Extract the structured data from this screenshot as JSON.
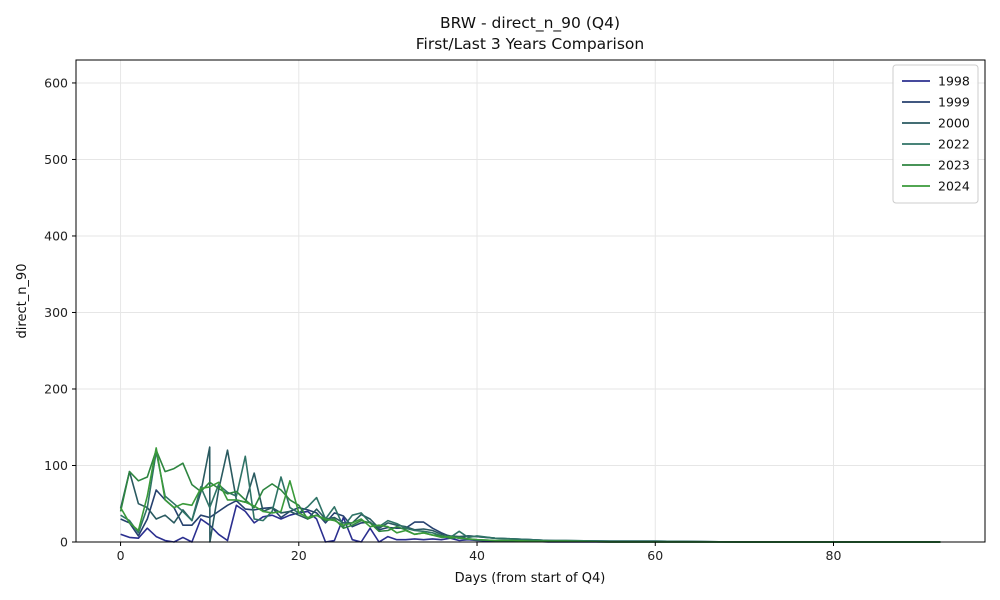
{
  "chart_data": {
    "type": "line",
    "title": "BRW - direct_n_90 (Q4)",
    "subtitle": "First/Last 3 Years Comparison",
    "xlabel": "Days (from start of Q4)",
    "ylabel": "direct_n_90",
    "xlim": [
      -5,
      97
    ],
    "ylim": [
      0,
      630
    ],
    "xticks": [
      0,
      20,
      40,
      60,
      80
    ],
    "yticks": [
      0,
      100,
      200,
      300,
      400,
      500,
      600
    ],
    "grid": true,
    "legend_position": "top-right",
    "series": [
      {
        "name": "1998",
        "color": "#2b2f8f",
        "x": [
          0,
          1,
          2,
          3,
          4,
          5,
          6,
          7,
          8,
          9,
          10,
          11,
          12,
          13,
          14,
          15,
          16,
          17,
          18,
          19,
          20,
          21,
          22,
          23,
          24,
          25,
          26,
          27,
          28,
          29,
          30,
          31,
          32,
          33,
          34,
          35,
          36,
          37,
          38,
          39,
          40,
          42,
          44,
          46,
          48,
          50,
          55,
          60,
          70,
          80,
          92
        ],
        "y": [
          10,
          6,
          5,
          18,
          7,
          2,
          0,
          6,
          0,
          30,
          22,
          10,
          2,
          48,
          40,
          25,
          33,
          35,
          30,
          35,
          38,
          40,
          30,
          0,
          2,
          32,
          3,
          0,
          18,
          0,
          7,
          3,
          3,
          4,
          3,
          4,
          3,
          5,
          2,
          3,
          2,
          1,
          1,
          1,
          0,
          0,
          0,
          0,
          0,
          0,
          0
        ]
      },
      {
        "name": "1999",
        "color": "#26416e",
        "x": [
          0,
          1,
          2,
          3,
          4,
          5,
          6,
          7,
          8,
          9,
          10,
          11,
          12,
          13,
          14,
          15,
          16,
          17,
          18,
          19,
          20,
          21,
          22,
          23,
          24,
          25,
          26,
          27,
          28,
          29,
          30,
          31,
          32,
          33,
          34,
          35,
          36,
          37,
          38,
          39,
          40,
          42,
          44,
          46,
          48,
          50,
          55,
          60,
          70,
          80,
          92
        ],
        "y": [
          30,
          25,
          8,
          30,
          68,
          55,
          45,
          22,
          22,
          35,
          32,
          40,
          48,
          54,
          43,
          42,
          44,
          45,
          32,
          40,
          45,
          42,
          38,
          25,
          38,
          34,
          20,
          25,
          26,
          16,
          19,
          18,
          18,
          26,
          26,
          18,
          12,
          7,
          5,
          8,
          7,
          5,
          4,
          3,
          2,
          1,
          1,
          1,
          0,
          0,
          0
        ]
      },
      {
        "name": "2000",
        "color": "#2a5a60",
        "x": [
          0,
          1,
          2,
          3,
          4,
          5,
          6,
          7,
          8,
          9,
          10,
          10.02,
          11,
          12,
          13,
          14,
          15,
          16,
          17,
          18,
          19,
          20,
          21,
          22,
          23,
          24,
          25,
          26,
          27,
          28,
          29,
          30,
          31,
          32,
          33,
          34,
          35,
          36,
          37,
          38,
          39,
          40,
          42,
          44,
          46,
          48,
          50,
          55,
          60,
          70,
          80,
          92
        ],
        "y": [
          44,
          92,
          50,
          45,
          30,
          35,
          25,
          42,
          28,
          65,
          124,
          0,
          68,
          120,
          55,
          52,
          90,
          40,
          45,
          38,
          40,
          35,
          30,
          43,
          30,
          32,
          25,
          25,
          36,
          30,
          18,
          25,
          22,
          20,
          16,
          17,
          15,
          10,
          8,
          7,
          8,
          7,
          5,
          4,
          3,
          2,
          2,
          1,
          1,
          0,
          0,
          0
        ]
      },
      {
        "name": "2022",
        "color": "#2f7366",
        "x": [
          0,
          1,
          2,
          3,
          4,
          5,
          6,
          7,
          8,
          9,
          10,
          11,
          12,
          13,
          14,
          15,
          16,
          17,
          18,
          19,
          20,
          21,
          22,
          23,
          24,
          25,
          26,
          27,
          28,
          29,
          30,
          31,
          32,
          33,
          34,
          35,
          36,
          37,
          38,
          39,
          40,
          42,
          44,
          46,
          48,
          50,
          55,
          60,
          70,
          80,
          92
        ],
        "y": [
          35,
          28,
          12,
          45,
          118,
          60,
          50,
          40,
          28,
          72,
          45,
          75,
          65,
          60,
          112,
          30,
          28,
          40,
          85,
          45,
          38,
          46,
          58,
          30,
          46,
          20,
          35,
          38,
          25,
          20,
          28,
          24,
          18,
          15,
          14,
          12,
          8,
          6,
          14,
          6,
          8,
          5,
          4,
          3,
          2,
          2,
          1,
          1,
          0,
          0,
          0
        ]
      },
      {
        "name": "2023",
        "color": "#2e8540",
        "x": [
          0,
          1,
          2,
          3,
          4,
          5,
          6,
          7,
          8,
          9,
          10,
          11,
          12,
          13,
          14,
          15,
          16,
          17,
          18,
          19,
          20,
          21,
          22,
          23,
          24,
          25,
          26,
          27,
          28,
          29,
          30,
          31,
          32,
          33,
          34,
          35,
          36,
          37,
          38,
          39,
          40,
          42,
          44,
          46,
          48,
          50,
          55,
          60,
          70,
          80,
          92
        ],
        "y": [
          40,
          92,
          80,
          85,
          120,
          92,
          96,
          103,
          75,
          66,
          78,
          70,
          63,
          66,
          55,
          45,
          68,
          76,
          68,
          55,
          48,
          30,
          35,
          28,
          30,
          18,
          22,
          28,
          25,
          14,
          15,
          20,
          16,
          10,
          12,
          9,
          8,
          5,
          6,
          4,
          3,
          2,
          2,
          1,
          1,
          1,
          0,
          0,
          0,
          0,
          0
        ]
      },
      {
        "name": "2024",
        "color": "#3a9a3a",
        "x": [
          0,
          1,
          2,
          3,
          4,
          5,
          6,
          7,
          8,
          9,
          10,
          11,
          12,
          13,
          14,
          15,
          16,
          17,
          18,
          19,
          20,
          21,
          22,
          23,
          24,
          25,
          26,
          27,
          28,
          29,
          30,
          31,
          32,
          33,
          34,
          35,
          36,
          37,
          38,
          39,
          40,
          42,
          44,
          46,
          48,
          50,
          55,
          60,
          70,
          80,
          92
        ],
        "y": [
          45,
          25,
          15,
          60,
          123,
          55,
          45,
          50,
          48,
          70,
          72,
          78,
          55,
          55,
          52,
          47,
          40,
          38,
          40,
          80,
          38,
          32,
          35,
          30,
          28,
          22,
          25,
          30,
          20,
          22,
          20,
          12,
          15,
          10,
          12,
          9,
          6,
          7,
          5,
          4,
          3,
          2,
          2,
          1,
          1,
          1,
          0,
          0,
          0,
          0,
          0
        ]
      }
    ]
  }
}
